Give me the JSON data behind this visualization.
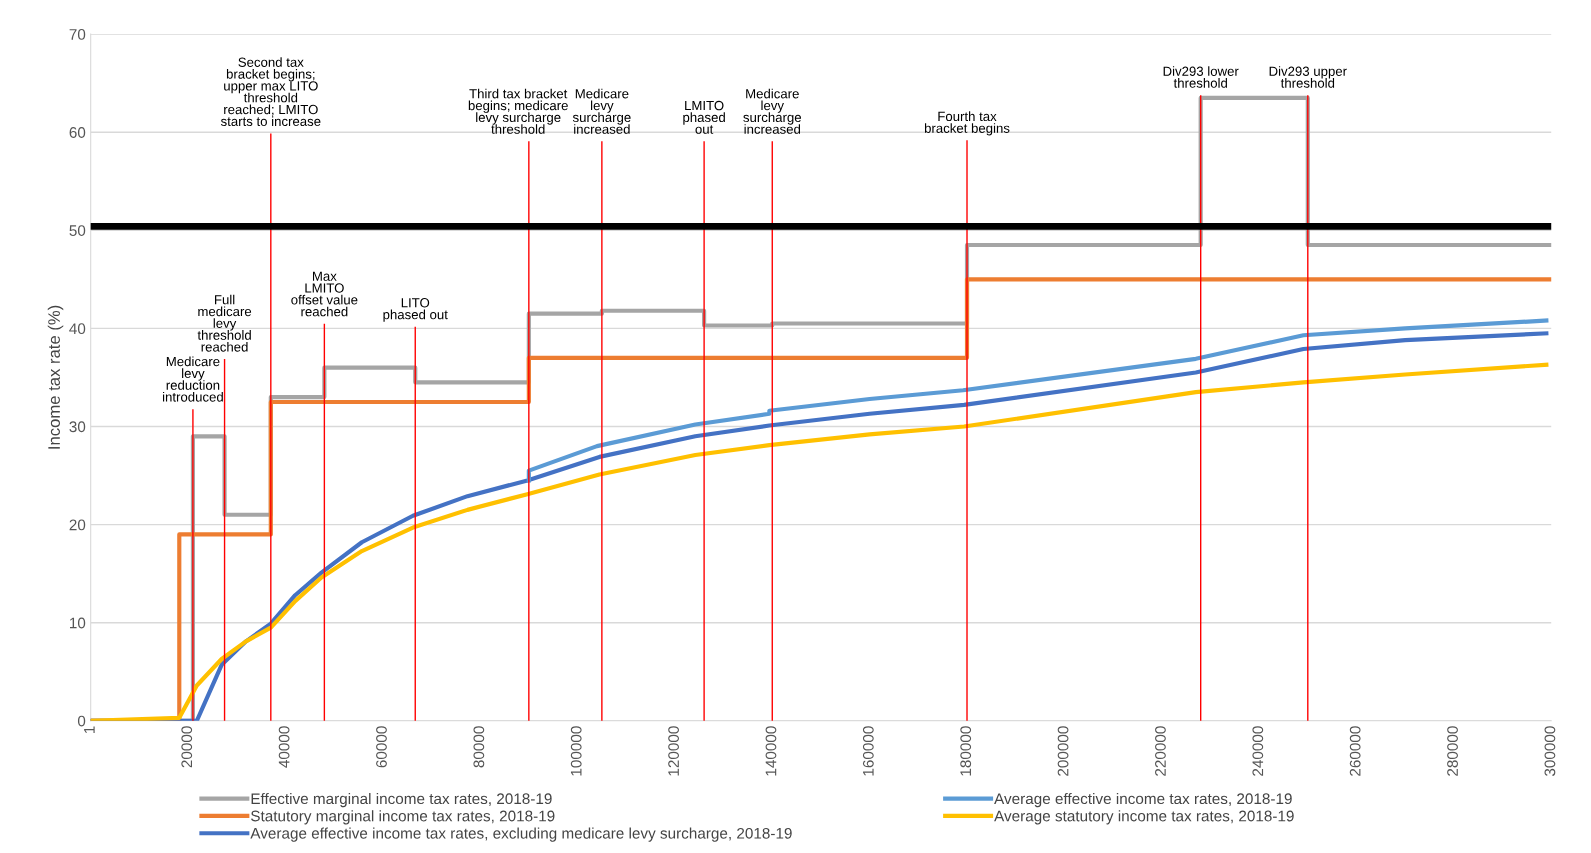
{
  "chart_data": {
    "type": "line",
    "ylabel": "Income tax rate (%)",
    "xlim": [
      1,
      300000
    ],
    "xticks": [
      1,
      20000,
      40000,
      60000,
      80000,
      100000,
      120000,
      140000,
      160000,
      180000,
      200000,
      220000,
      240000,
      260000,
      280000,
      300000
    ],
    "ylim": [
      0,
      70
    ],
    "yticks": [
      0,
      10,
      20,
      30,
      40,
      50,
      60,
      70
    ],
    "grid": "y",
    "legend": "bottom",
    "line_style": "solid",
    "marker": "none",
    "series": [
      {
        "name": "Effective marginal income tax rates, 2018-19",
        "color": "#a5a5a5",
        "type": "step",
        "x": [
          1,
          21000,
          27500,
          37000,
          48000,
          66667,
          90000,
          105000,
          126000,
          140000,
          180000,
          228000,
          250000,
          300000
        ],
        "values": [
          0,
          29,
          21,
          33,
          36,
          34.5,
          41.5,
          41.8,
          40.3,
          40.5,
          48.5,
          63.5,
          48.5,
          48.5
        ]
      },
      {
        "name": "Statutory marginal income tax rates, 2018-19",
        "color": "#ed7d31",
        "type": "step",
        "x": [
          1,
          18200,
          37000,
          90000,
          180000,
          300000
        ],
        "values": [
          0,
          19,
          32.5,
          37,
          45,
          45
        ]
      },
      {
        "name": "Average effective income tax rates, excluding medicare levy surcharge, 2018-19",
        "color": "#4472c4",
        "x": [
          1,
          21800,
          26900,
          31900,
          37000,
          42000,
          47400,
          55700,
          66200,
          77400,
          89700,
          104500,
          124200,
          139400,
          160000,
          179400,
          227000,
          249100,
          270000,
          299000
        ],
        "values": [
          0,
          0,
          5.7,
          8.1,
          9.9,
          12.8,
          15.1,
          18.2,
          20.9,
          22.9,
          24.5,
          26.9,
          29.0,
          30.1,
          31.3,
          32.2,
          35.5,
          37.9,
          38.8,
          39.5
        ]
      },
      {
        "name": "Average effective income tax rates, 2018-19",
        "color": "#5b9bd5",
        "x": [
          90000,
          90000,
          104000,
          124200,
          139400,
          139400,
          160000,
          179200,
          227000,
          249100,
          270000,
          299000
        ],
        "values": [
          24.5,
          25.5,
          28.0,
          30.2,
          31.3,
          31.6,
          32.8,
          33.7,
          36.9,
          39.3,
          40.0,
          40.8
        ]
      },
      {
        "name": "Average statutory income tax rates, 2018-19",
        "color": "#ffc000",
        "x": [
          1,
          18200,
          21800,
          26900,
          31900,
          37000,
          42000,
          47400,
          55700,
          66200,
          77400,
          89700,
          104500,
          124200,
          139400,
          160000,
          179400,
          227000,
          249100,
          270000,
          299000
        ],
        "values": [
          0,
          0.3,
          3.6,
          6.3,
          8.1,
          9.5,
          12.2,
          14.6,
          17.3,
          19.7,
          21.5,
          23.1,
          25.1,
          27.1,
          28.1,
          29.2,
          30.0,
          33.5,
          34.5,
          35.3,
          36.3
        ]
      }
    ],
    "ref_lines": [
      {
        "axis": "x",
        "value": 21000,
        "color": "#ff0000"
      },
      {
        "axis": "x",
        "value": 27500,
        "color": "#ff0000"
      },
      {
        "axis": "x",
        "value": 37000,
        "color": "#ff0000"
      },
      {
        "axis": "x",
        "value": 48000,
        "color": "#ff0000"
      },
      {
        "axis": "x",
        "value": 66667,
        "color": "#ff0000"
      },
      {
        "axis": "x",
        "value": 90000,
        "color": "#ff0000"
      },
      {
        "axis": "x",
        "value": 105000,
        "color": "#ff0000"
      },
      {
        "axis": "x",
        "value": 126000,
        "color": "#ff0000"
      },
      {
        "axis": "x",
        "value": 140000,
        "color": "#ff0000"
      },
      {
        "axis": "x",
        "value": 180000,
        "color": "#ff0000"
      },
      {
        "axis": "x",
        "value": 228000,
        "color": "#ff0000"
      },
      {
        "axis": "x",
        "value": 250000,
        "color": "#ff0000"
      },
      {
        "axis": "y",
        "value": 50.4,
        "color": "#000000"
      }
    ],
    "annotations": [
      {
        "text": "Medicare\nlevy\nreduction\nintroduced",
        "x": 21000,
        "y": 31.7
      },
      {
        "text": "Full\nmedicare\nlevy\nthreshold\nreached",
        "x": 27500,
        "y": 36.8
      },
      {
        "text": "Second tax\nbracket begins;\nupper max LITO\nthreshold\nreached; LMITO\nstarts to increase",
        "x": 37000,
        "y": 59.8
      },
      {
        "text": "Max\nLMITO\noffset value\nreached",
        "x": 48000,
        "y": 40.4
      },
      {
        "text": "LITO\nphased out",
        "x": 66667,
        "y": 40.1
      },
      {
        "text": "Third tax bracket\nbegins; medicare\nlevy surcharge\nthreshold",
        "x": 90000,
        "y": 59.0
      },
      {
        "text": "Medicare\nlevy\nsurcharge\nincreased",
        "x": 105000,
        "y": 59.0
      },
      {
        "text": "LMITO\nphased\nout",
        "x": 126000,
        "y": 59.0
      },
      {
        "text": "Medicare\nlevy\nsurcharge\nincreased",
        "x": 140000,
        "y": 59.0
      },
      {
        "text": "Fourth tax\nbracket begins",
        "x": 180000,
        "y": 59.1
      },
      {
        "text": "Div293 lower\nthreshold",
        "x": 228000,
        "y": 63.7
      },
      {
        "text": "Div293 upper\nthreshold",
        "x": 250000,
        "y": 63.7
      }
    ]
  }
}
